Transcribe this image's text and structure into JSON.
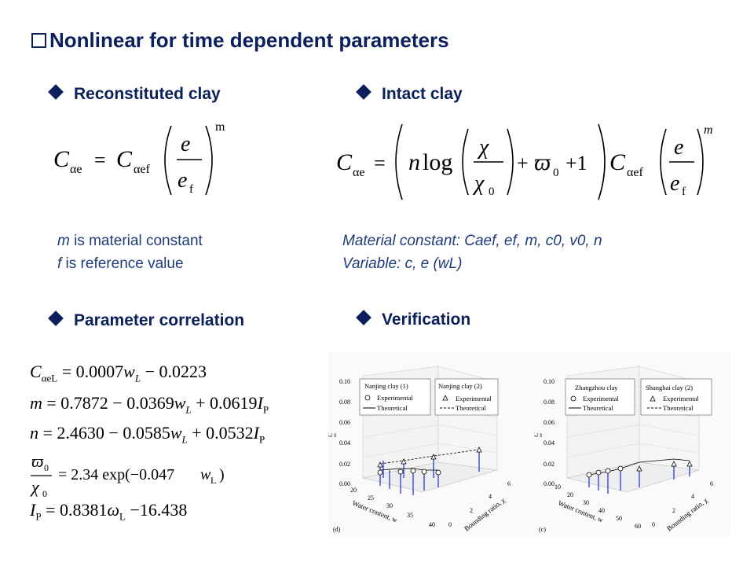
{
  "title": "Nonlinear for time dependent parameters",
  "sections": {
    "reconstituted": "Reconstituted clay",
    "intact": "Intact clay",
    "correlation": "Parameter correlation",
    "verification": "Verification"
  },
  "notes_left": {
    "line1_var": "m",
    "line1_text": " is material constant",
    "line2_var": "f",
    "line2_text": " is reference value"
  },
  "notes_right": {
    "line1": "Material constant: Caef, ef, m, c0, v0, n",
    "line2": "Variable: c, e (wL)"
  },
  "equations": {
    "recon_C": "C",
    "recon_sub_ae": "αe",
    "recon_eq": "=",
    "recon_C2": "C",
    "recon_sub_aef": "αef",
    "recon_e": "e",
    "recon_ef": "e",
    "recon_ef_sub": "f",
    "recon_exp": "m",
    "intact_C": "C",
    "intact_sub_ae": "αe",
    "intact_eq": "=",
    "intact_n": "n",
    "intact_log": "log",
    "intact_chi": "χ",
    "intact_chi0": "χ",
    "intact_chi0_sub": "0",
    "intact_plus": "+",
    "intact_omega": "ϖ",
    "intact_omega_sub": "0",
    "intact_plus2": "+1",
    "intact_C2": "C",
    "intact_sub_aef": "αef",
    "intact_e": "e",
    "intact_ef": "e",
    "intact_ef_sub": "f",
    "intact_exp": "m",
    "corr1_C": "C",
    "corr1_sub": "αeL",
    "corr1_rhs": " = 0.0007",
    "corr1_w": "w",
    "corr1_wsub": "L",
    "corr1_tail": " − 0.0223",
    "corr2_m": "m",
    "corr2_rhs": " = 0.7872 − 0.0369",
    "corr2_w": "w",
    "corr2_wsub": "L",
    "corr2_mid": " + 0.0619",
    "corr2_I": "I",
    "corr2_Isub": "P",
    "corr3_n": "n",
    "corr3_rhs": " = 2.4630 − 0.0585",
    "corr3_w": "w",
    "corr3_wsub": "L",
    "corr3_mid": " + 0.0532",
    "corr3_I": "I",
    "corr3_Isub": "P",
    "corr4_num": "ϖ",
    "corr4_num_sub": "0",
    "corr4_den": "χ",
    "corr4_den_sub": "0",
    "corr4_rhs": "= 2.34 exp(−0.047",
    "corr4_w": "w",
    "corr4_wsub": "L",
    "corr4_close": ")",
    "corr5_I": "I",
    "corr5_Isub": "P",
    "corr5_rhs": " = 0.8381",
    "corr5_w": "ω",
    "corr5_wsub": "L",
    "corr5_tail": " −16.438"
  },
  "plot_d": {
    "yticks": [
      "0.10",
      "0.08",
      "0.06",
      "0.04",
      "0.02",
      "0.00"
    ],
    "ylabel": "C",
    "ylabel_sub": "αe",
    "xticks": [
      "20",
      "25",
      "30",
      "35",
      "40"
    ],
    "xlabel": "Water content, w",
    "zticks": [
      "0",
      "2",
      "4",
      "6"
    ],
    "zlabel": "Bounding ratio, χ",
    "legend1_title": "Nanjing clay (1)",
    "legend1_exp": "Experimental",
    "legend1_theo": "Theoretical",
    "legend2_title": "Nanjing clay (2)",
    "legend2_exp": "Experimental",
    "legend2_theo": "Theoretical",
    "panel": "(d)"
  },
  "plot_c": {
    "yticks": [
      "0.10",
      "0.08",
      "0.06",
      "0.04",
      "0.02",
      "0.00"
    ],
    "ylabel": "C",
    "ylabel_sub": "αe",
    "xticks": [
      "10",
      "20",
      "30",
      "40",
      "50",
      "60"
    ],
    "xlabel": "Water content, w",
    "zticks": [
      "0",
      "2",
      "4",
      "6"
    ],
    "zlabel": "Bounding ratio, χ",
    "legend1_title": "Zhangzhou clay",
    "legend1_exp": "Experimental",
    "legend1_theo": "Theoretical",
    "legend2_title": "Shanghai clay (2)",
    "legend2_exp": "Experimental",
    "legend2_theo": "Theoretical",
    "panel": "(c)"
  },
  "colors": {
    "heading": "#0a1f5c",
    "note": "#1f3b7a",
    "stem": "#1a2bd6"
  }
}
